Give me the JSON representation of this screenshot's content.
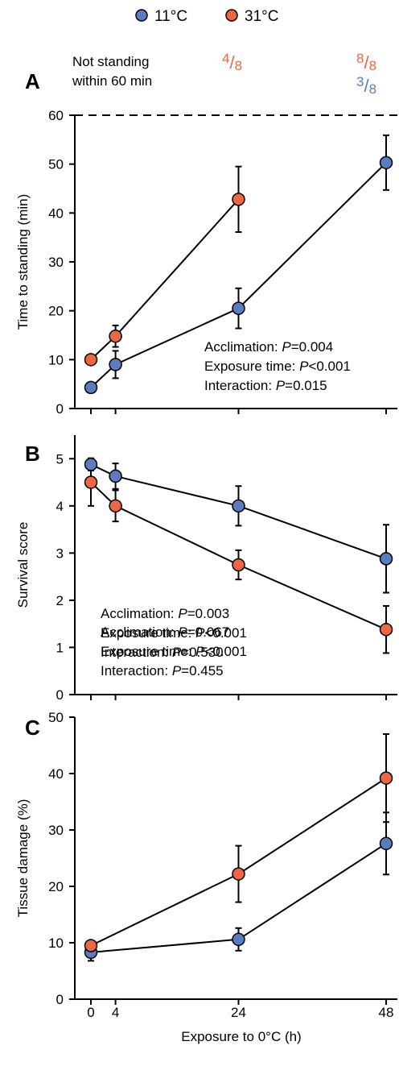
{
  "colors": {
    "cold": "#5b7dc0",
    "warm": "#ee6744",
    "line": "#000000"
  },
  "legend": {
    "items": [
      {
        "label": "11°C",
        "color_key": "cold"
      },
      {
        "label": "31°C",
        "color_key": "warm"
      }
    ]
  },
  "not_standing": {
    "label_line1": "Not standing",
    "label_line2": "within 60 min",
    "fractions": [
      {
        "numerator": "4",
        "denominator": "8",
        "color_key": "warm",
        "at_x": 4,
        "row": 0
      },
      {
        "numerator": "8",
        "denominator": "8",
        "color_key": "warm",
        "at_x": 48,
        "row": 0
      },
      {
        "numerator": "3",
        "denominator": "8",
        "color_key": "cold",
        "at_x": 48,
        "row": 1
      }
    ]
  },
  "x_axis": {
    "label": "Exposure to 0°C (h)",
    "ticks": [
      0,
      4,
      24,
      48
    ],
    "tick_labels": [
      "0",
      "4",
      "24",
      "48"
    ]
  },
  "chart_data": [
    {
      "type": "line",
      "panel_letter": "A",
      "ylabel": "Time to standing (min)",
      "ylim": [
        0,
        60
      ],
      "yticks": [
        0,
        10,
        20,
        30,
        40,
        50,
        60
      ],
      "reference_line": 60,
      "x": [
        0,
        4,
        24,
        48
      ],
      "series": [
        {
          "name": "11°C",
          "color_key": "cold",
          "x": [
            0,
            4,
            24,
            48
          ],
          "values": [
            4.3,
            9.0,
            20.5,
            50.3
          ],
          "err": [
            0,
            2.8,
            4.1,
            5.6
          ]
        },
        {
          "name": "31°C",
          "color_key": "warm",
          "x": [
            0,
            4,
            24
          ],
          "values": [
            10.0,
            14.8,
            42.8
          ],
          "err": [
            0,
            2.2,
            6.7
          ]
        }
      ],
      "stats": [
        {
          "prefix": "Acclimation: ",
          "p": "P",
          "value": "=0.004"
        },
        {
          "prefix": "Exposure time: ",
          "p": "P",
          "value": "<0.001"
        },
        {
          "prefix": "Interaction: ",
          "p": "P",
          "value": "=0.015"
        }
      ]
    },
    {
      "type": "line",
      "panel_letter": "B",
      "ylabel": "Survival score",
      "ylim": [
        0,
        5.5
      ],
      "yticks": [
        0,
        1,
        2,
        3,
        4,
        5
      ],
      "x": [
        0,
        4,
        24,
        48
      ],
      "series": [
        {
          "name": "11°C",
          "color_key": "cold",
          "x": [
            0,
            4,
            24,
            48
          ],
          "values": [
            4.88,
            4.63,
            4.0,
            2.88
          ],
          "err": [
            0.13,
            0.27,
            0.42,
            0.72
          ]
        },
        {
          "name": "31°C",
          "color_key": "warm",
          "x": [
            0,
            4,
            24,
            48
          ],
          "values": [
            4.5,
            4.0,
            2.75,
            1.38
          ],
          "err": [
            0.5,
            0.33,
            0.31,
            0.5
          ]
        }
      ],
      "stats": [
        {
          "prefix": "Acclimation: ",
          "p": "P",
          "value": "=0.003"
        },
        {
          "prefix": "Exposure time: ",
          "p": "P",
          "value": "<0.001"
        },
        {
          "prefix": "Interaction: ",
          "p": "P",
          "value": "=0.530"
        }
      ]
    },
    {
      "type": "line",
      "panel_letter": "C",
      "ylabel": "Tissue damage (%)",
      "ylim": [
        0,
        50
      ],
      "yticks": [
        0,
        10,
        20,
        30,
        40,
        50
      ],
      "x": [
        0,
        4,
        24,
        48
      ],
      "series": [
        {
          "name": "11°C",
          "color_key": "cold",
          "x": [
            0,
            24,
            48
          ],
          "values": [
            8.3,
            10.6,
            27.6
          ],
          "err": [
            1.5,
            2.0,
            5.5
          ]
        },
        {
          "name": "31°C",
          "color_key": "warm",
          "x": [
            0,
            24,
            48
          ],
          "values": [
            9.5,
            22.2,
            39.2
          ],
          "err": [
            0.8,
            5.0,
            7.8
          ]
        }
      ],
      "stats": [
        {
          "prefix": "Acclimation: ",
          "p": "P",
          "value": "=0.067"
        },
        {
          "prefix": "Exposure time: ",
          "p": "P",
          "value": "<0.001"
        },
        {
          "prefix": "Interaction: ",
          "p": "P",
          "value": "=0.455"
        }
      ]
    }
  ]
}
